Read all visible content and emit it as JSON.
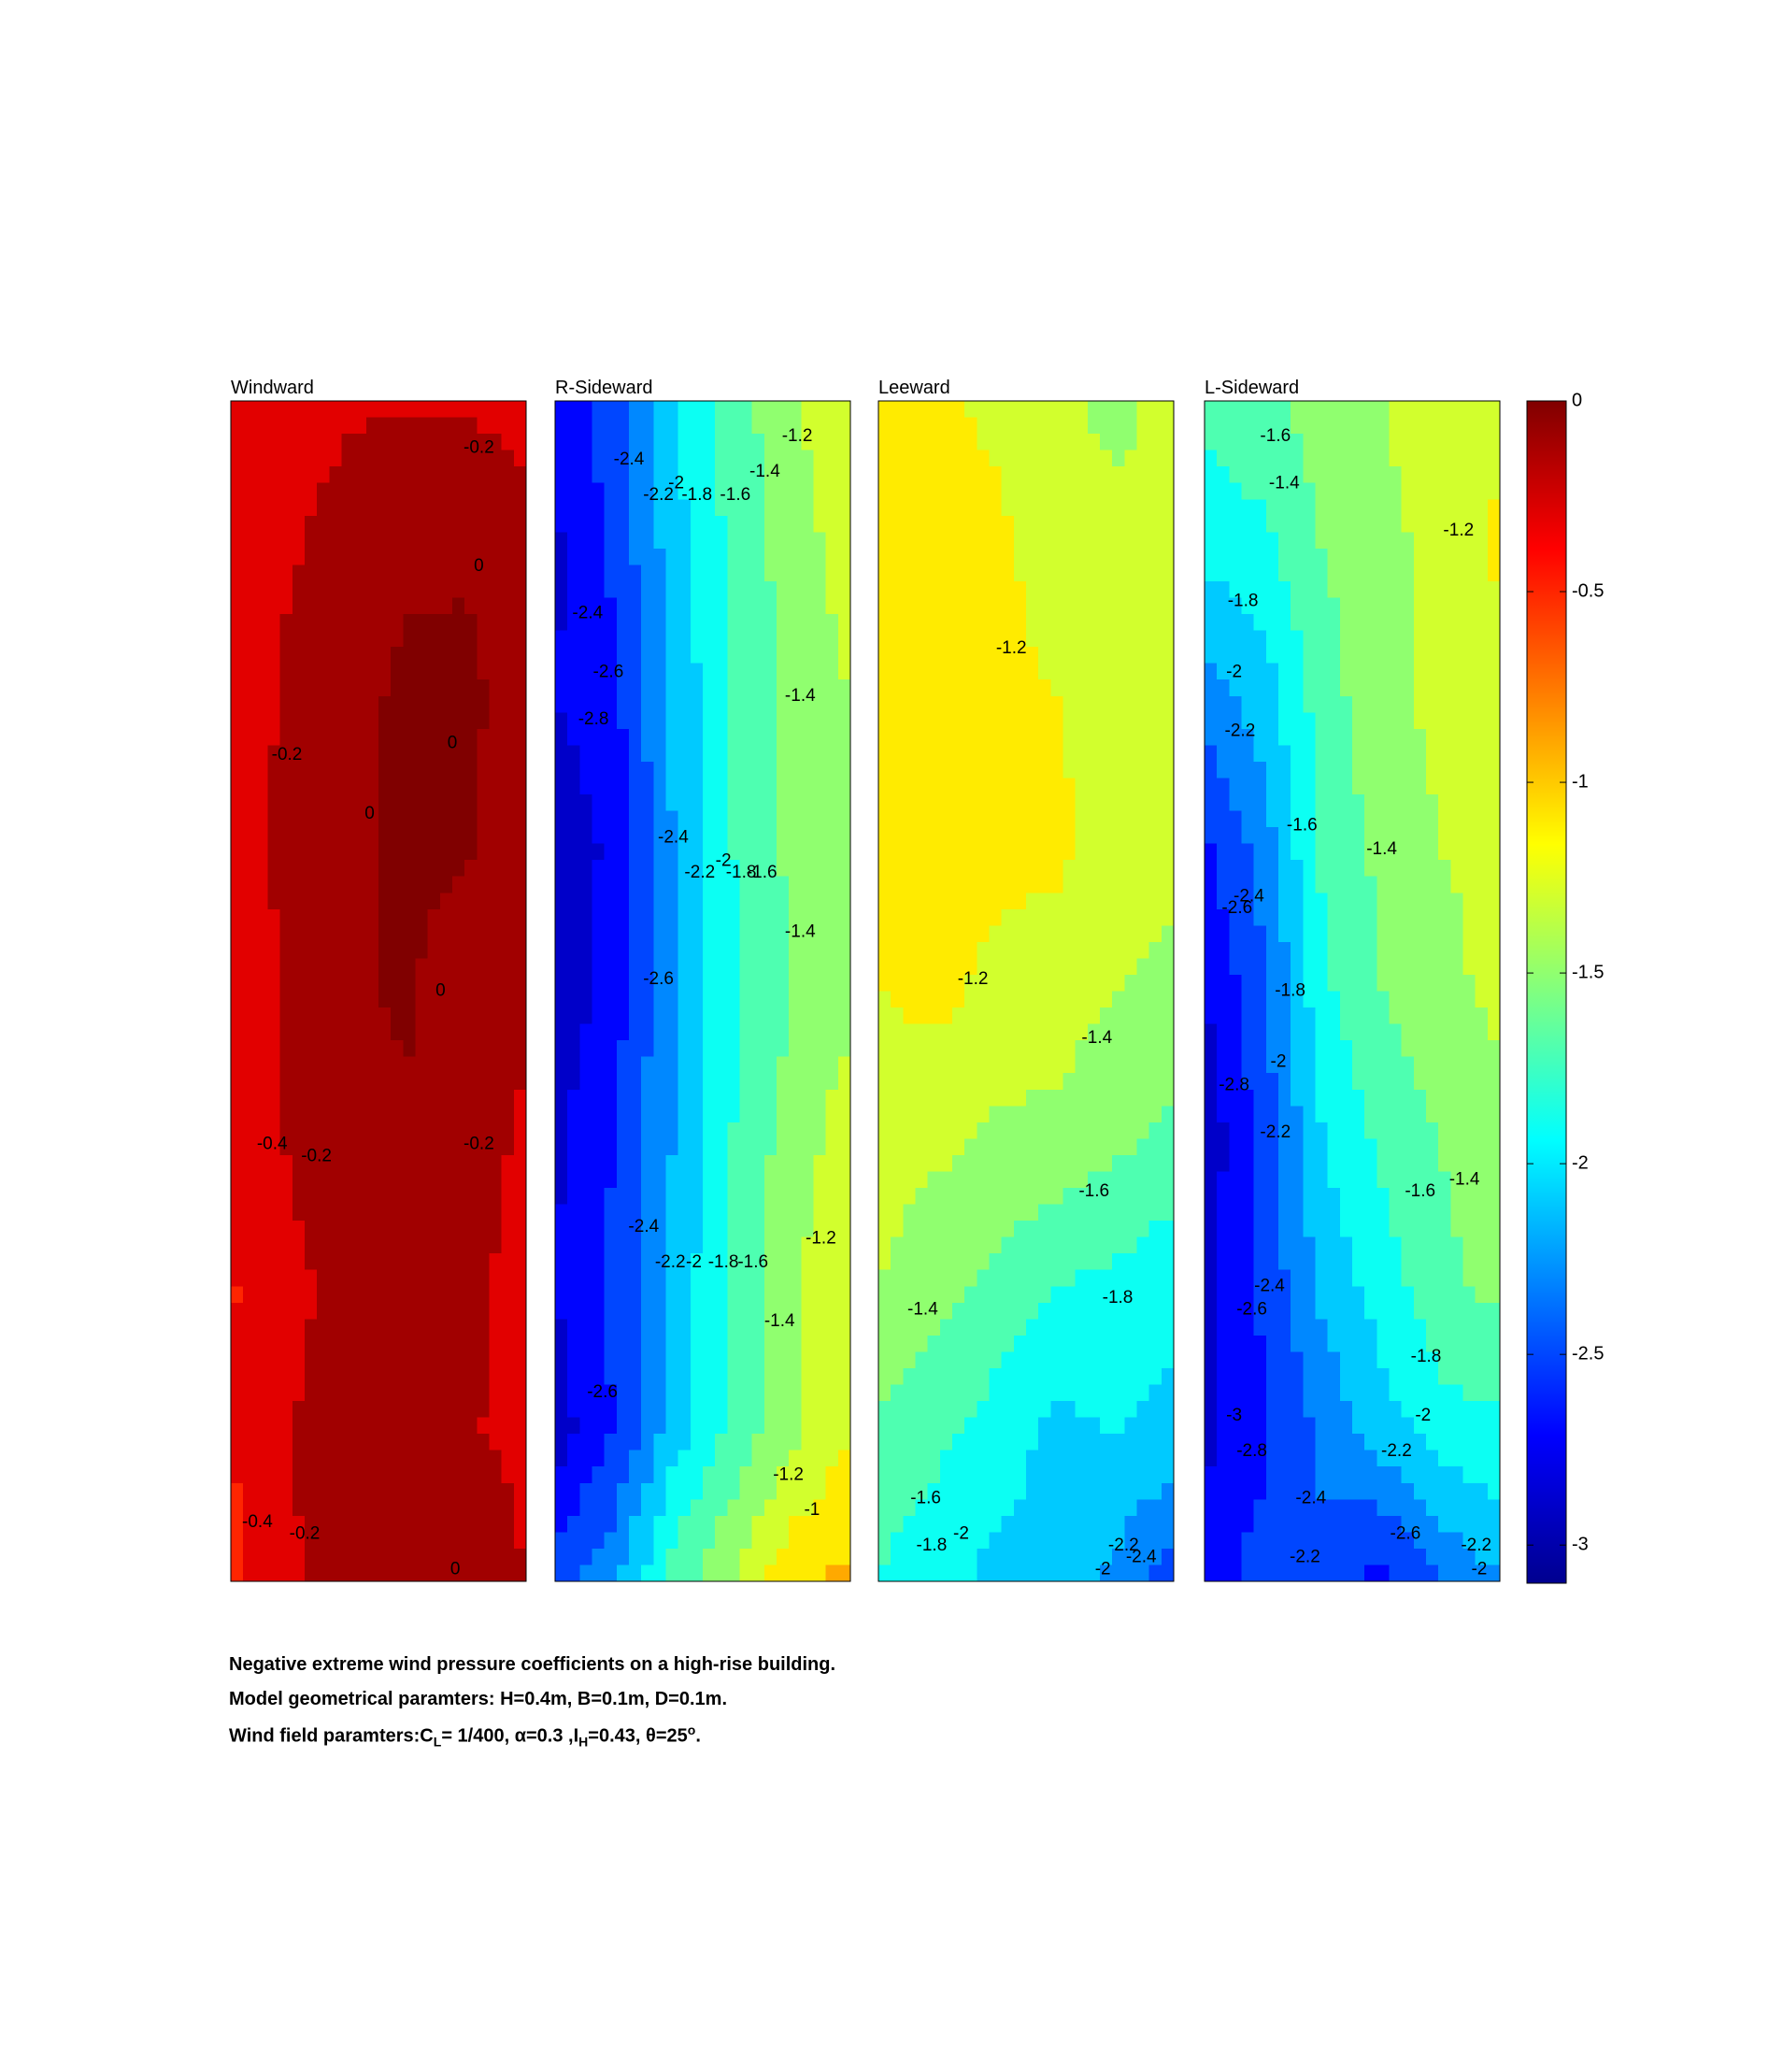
{
  "colors": {
    "colormap": [
      "#00008f",
      "#0000ff",
      "#0080ff",
      "#00ffff",
      "#80ff80",
      "#ffff00",
      "#ff8000",
      "#ff0000",
      "#800000"
    ],
    "frame": "#000000",
    "background": "#ffffff"
  },
  "chart_data": {
    "type": "heatmap",
    "style": "filled-contour",
    "clim": [
      -3.1,
      0
    ],
    "colorbar": {
      "ticks": [
        0,
        -0.5,
        -1,
        -1.5,
        -2,
        -2.5,
        -3
      ],
      "tick_labels": [
        "0",
        "-0.5",
        "-1",
        "-1.5",
        "-2",
        "-2.5",
        "-3"
      ],
      "placement": "right"
    },
    "grid": false,
    "panels": [
      {
        "title": "Windward",
        "grid_values": [
          [
            -0.34,
            -0.3,
            -0.22,
            -0.22,
            -0.22,
            -0.28
          ],
          [
            -0.38,
            -0.22,
            -0.12,
            -0.04,
            -0.02,
            -0.12
          ],
          [
            -0.32,
            -0.16,
            -0.06,
            0.04,
            0.04,
            -0.08
          ],
          [
            -0.28,
            -0.16,
            -0.04,
            0.04,
            0.02,
            -0.16
          ],
          [
            -0.34,
            -0.16,
            -0.02,
            0.02,
            -0.12,
            -0.18
          ],
          [
            -0.34,
            -0.18,
            -0.06,
            -0.02,
            -0.14,
            -0.22
          ],
          [
            -0.42,
            -0.24,
            -0.14,
            -0.14,
            -0.16,
            -0.26
          ],
          [
            -0.4,
            -0.2,
            -0.14,
            -0.12,
            -0.18,
            -0.26
          ],
          [
            -0.46,
            -0.22,
            -0.14,
            -0.12,
            -0.02,
            -0.2
          ]
        ],
        "contour_labels": [
          {
            "text": "-0.2",
            "col": 0.84,
            "row": 0.04
          },
          {
            "text": "0",
            "col": 0.84,
            "row": 0.14
          },
          {
            "text": "-0.2",
            "col": 0.19,
            "row": 0.3
          },
          {
            "text": "0",
            "col": 0.75,
            "row": 0.29
          },
          {
            "text": "0",
            "col": 0.47,
            "row": 0.35
          },
          {
            "text": "0",
            "col": 0.71,
            "row": 0.5
          },
          {
            "text": "-0.4",
            "col": 0.14,
            "row": 0.63
          },
          {
            "text": "-0.2",
            "col": 0.29,
            "row": 0.64
          },
          {
            "text": "-0.2",
            "col": 0.84,
            "row": 0.63
          },
          {
            "text": "-0.4",
            "col": 0.09,
            "row": 0.95
          },
          {
            "text": "-0.2",
            "col": 0.25,
            "row": 0.96
          },
          {
            "text": "0",
            "col": 0.76,
            "row": 0.99
          }
        ]
      },
      {
        "title": "R-Sideward",
        "grid_values": [
          [
            -2.7,
            -2.5,
            -2.0,
            -1.7,
            -1.45,
            -1.2
          ],
          [
            -2.85,
            -2.55,
            -2.1,
            -1.75,
            -1.5,
            -1.3
          ],
          [
            -2.8,
            -2.65,
            -2.15,
            -1.8,
            -1.55,
            -1.4
          ],
          [
            -2.95,
            -2.75,
            -2.2,
            -1.8,
            -1.55,
            -1.4
          ],
          [
            -2.95,
            -2.7,
            -2.2,
            -1.85,
            -1.6,
            -1.45
          ],
          [
            -2.85,
            -2.6,
            -2.2,
            -1.8,
            -1.5,
            -1.3
          ],
          [
            -2.8,
            -2.55,
            -2.15,
            -1.75,
            -1.45,
            -1.2
          ],
          [
            -2.9,
            -2.6,
            -2.1,
            -1.75,
            -1.45,
            -1.2
          ],
          [
            -2.5,
            -2.25,
            -1.7,
            -1.4,
            -1.05,
            -0.95
          ]
        ],
        "contour_labels": [
          {
            "text": "-1.2",
            "col": 0.82,
            "row": 0.03
          },
          {
            "text": "-2.4",
            "col": 0.25,
            "row": 0.05
          },
          {
            "text": "-2.2",
            "col": 0.35,
            "row": 0.08
          },
          {
            "text": "-2",
            "col": 0.41,
            "row": 0.07
          },
          {
            "text": "-1.8",
            "col": 0.48,
            "row": 0.08
          },
          {
            "text": "-1.6",
            "col": 0.61,
            "row": 0.08
          },
          {
            "text": "-1.4",
            "col": 0.71,
            "row": 0.06
          },
          {
            "text": "-2.4",
            "col": 0.11,
            "row": 0.18
          },
          {
            "text": "-2.6",
            "col": 0.18,
            "row": 0.23
          },
          {
            "text": "-2.8",
            "col": 0.13,
            "row": 0.27
          },
          {
            "text": "-1.4",
            "col": 0.83,
            "row": 0.25
          },
          {
            "text": "-2.4",
            "col": 0.4,
            "row": 0.37
          },
          {
            "text": "-2.2",
            "col": 0.49,
            "row": 0.4
          },
          {
            "text": "-2",
            "col": 0.57,
            "row": 0.39
          },
          {
            "text": "-1.8",
            "col": 0.63,
            "row": 0.4
          },
          {
            "text": "-1.6",
            "col": 0.7,
            "row": 0.4
          },
          {
            "text": "-1.4",
            "col": 0.83,
            "row": 0.45
          },
          {
            "text": "-2.6",
            "col": 0.35,
            "row": 0.49
          },
          {
            "text": "-2.4",
            "col": 0.3,
            "row": 0.7
          },
          {
            "text": "-2.2",
            "col": 0.39,
            "row": 0.73
          },
          {
            "text": "-2",
            "col": 0.47,
            "row": 0.73
          },
          {
            "text": "-1.8",
            "col": 0.57,
            "row": 0.73
          },
          {
            "text": "-1.6",
            "col": 0.67,
            "row": 0.73
          },
          {
            "text": "-1.2",
            "col": 0.9,
            "row": 0.71
          },
          {
            "text": "-1.4",
            "col": 0.76,
            "row": 0.78
          },
          {
            "text": "-2.6",
            "col": 0.16,
            "row": 0.84
          },
          {
            "text": "-1.2",
            "col": 0.79,
            "row": 0.91
          },
          {
            "text": "-1",
            "col": 0.87,
            "row": 0.94
          }
        ]
      },
      {
        "title": "Leeward",
        "grid_values": [
          [
            -1.15,
            -1.15,
            -1.25,
            -1.35,
            -1.45,
            -1.35
          ],
          [
            -1.15,
            -1.15,
            -1.15,
            -1.3,
            -1.35,
            -1.35
          ],
          [
            -1.15,
            -1.15,
            -1.15,
            -1.2,
            -1.3,
            -1.35
          ],
          [
            -1.15,
            -1.15,
            -1.15,
            -1.15,
            -1.3,
            -1.35
          ],
          [
            -1.2,
            -1.15,
            -1.25,
            -1.3,
            -1.4,
            -1.45
          ],
          [
            -1.3,
            -1.35,
            -1.45,
            -1.45,
            -1.55,
            -1.65
          ],
          [
            -1.4,
            -1.55,
            -1.65,
            -1.8,
            -1.85,
            -1.95
          ],
          [
            -1.65,
            -1.75,
            -1.9,
            -2.05,
            -2.0,
            -2.05
          ],
          [
            -1.8,
            -1.95,
            -2.05,
            -2.05,
            -2.25,
            -2.55
          ]
        ],
        "contour_labels": [
          {
            "text": "-1.2",
            "col": 0.45,
            "row": 0.21
          },
          {
            "text": "-1.2",
            "col": 0.32,
            "row": 0.49
          },
          {
            "text": "-1.4",
            "col": 0.74,
            "row": 0.54
          },
          {
            "text": "-1.6",
            "col": 0.73,
            "row": 0.67
          },
          {
            "text": "-1.4",
            "col": 0.15,
            "row": 0.77
          },
          {
            "text": "-1.8",
            "col": 0.81,
            "row": 0.76
          },
          {
            "text": "-1.6",
            "col": 0.16,
            "row": 0.93
          },
          {
            "text": "-2",
            "col": 0.28,
            "row": 0.96
          },
          {
            "text": "-1.8",
            "col": 0.18,
            "row": 0.97
          },
          {
            "text": "-2",
            "col": 0.76,
            "row": 0.99
          },
          {
            "text": "-2.2",
            "col": 0.83,
            "row": 0.97
          },
          {
            "text": "-2.4",
            "col": 0.89,
            "row": 0.98
          }
        ]
      },
      {
        "title": "L-Sideward",
        "grid_values": [
          [
            -1.75,
            -1.65,
            -1.5,
            -1.4,
            -1.3,
            -1.25
          ],
          [
            -1.95,
            -1.85,
            -1.6,
            -1.45,
            -1.35,
            -1.15
          ],
          [
            -2.3,
            -2.1,
            -1.7,
            -1.45,
            -1.35,
            -1.3
          ],
          [
            -2.65,
            -2.3,
            -1.75,
            -1.55,
            -1.4,
            -1.35
          ],
          [
            -2.8,
            -2.45,
            -1.85,
            -1.6,
            -1.45,
            -1.35
          ],
          [
            -2.95,
            -2.5,
            -2.0,
            -1.75,
            -1.6,
            -1.45
          ],
          [
            -2.85,
            -2.55,
            -2.15,
            -1.9,
            -1.65,
            -1.55
          ],
          [
            -2.85,
            -2.65,
            -2.35,
            -2.1,
            -1.9,
            -1.85
          ],
          [
            -2.7,
            -2.5,
            -2.45,
            -2.7,
            -2.4,
            -2.2
          ]
        ],
        "contour_labels": [
          {
            "text": "-1.6",
            "col": 0.24,
            "row": 0.03
          },
          {
            "text": "-1.4",
            "col": 0.27,
            "row": 0.07
          },
          {
            "text": "-1.2",
            "col": 0.86,
            "row": 0.11
          },
          {
            "text": "-1.8",
            "col": 0.13,
            "row": 0.17
          },
          {
            "text": "-2",
            "col": 0.1,
            "row": 0.23
          },
          {
            "text": "-2.2",
            "col": 0.12,
            "row": 0.28
          },
          {
            "text": "-1.6",
            "col": 0.33,
            "row": 0.36
          },
          {
            "text": "-1.4",
            "col": 0.6,
            "row": 0.38
          },
          {
            "text": "-2.4",
            "col": 0.15,
            "row": 0.42
          },
          {
            "text": "-2.6",
            "col": 0.11,
            "row": 0.43
          },
          {
            "text": "-1.8",
            "col": 0.29,
            "row": 0.5
          },
          {
            "text": "-2",
            "col": 0.25,
            "row": 0.56
          },
          {
            "text": "-2.8",
            "col": 0.1,
            "row": 0.58
          },
          {
            "text": "-2.2",
            "col": 0.24,
            "row": 0.62
          },
          {
            "text": "-1.6",
            "col": 0.73,
            "row": 0.67
          },
          {
            "text": "-1.4",
            "col": 0.88,
            "row": 0.66
          },
          {
            "text": "-2.4",
            "col": 0.22,
            "row": 0.75
          },
          {
            "text": "-2.6",
            "col": 0.16,
            "row": 0.77
          },
          {
            "text": "-1.8",
            "col": 0.75,
            "row": 0.81
          },
          {
            "text": "-2",
            "col": 0.74,
            "row": 0.86
          },
          {
            "text": "-3",
            "col": 0.1,
            "row": 0.86
          },
          {
            "text": "-2.8",
            "col": 0.16,
            "row": 0.89
          },
          {
            "text": "-2.2",
            "col": 0.65,
            "row": 0.89
          },
          {
            "text": "-2.4",
            "col": 0.36,
            "row": 0.93
          },
          {
            "text": "-2.6",
            "col": 0.68,
            "row": 0.96
          },
          {
            "text": "-2.2",
            "col": 0.34,
            "row": 0.98
          },
          {
            "text": "-2.2",
            "col": 0.92,
            "row": 0.97
          },
          {
            "text": "-2",
            "col": 0.93,
            "row": 0.99
          }
        ]
      }
    ]
  },
  "caption": {
    "line1": "Negative extreme wind pressure coefficients on a high-rise building.",
    "line2": "Model geometrical paramters: H=0.4m, B=0.1m, D=0.1m.",
    "line3_prefix": "Wind field paramters:C",
    "line3_cl_sub": "L",
    "line3_mid1": "= 1/400, α=0.3 ,I",
    "line3_ih_sub": "H",
    "line3_mid2": "=0.43, θ=25",
    "line3_deg_sup": "o",
    "line3_end": "."
  }
}
